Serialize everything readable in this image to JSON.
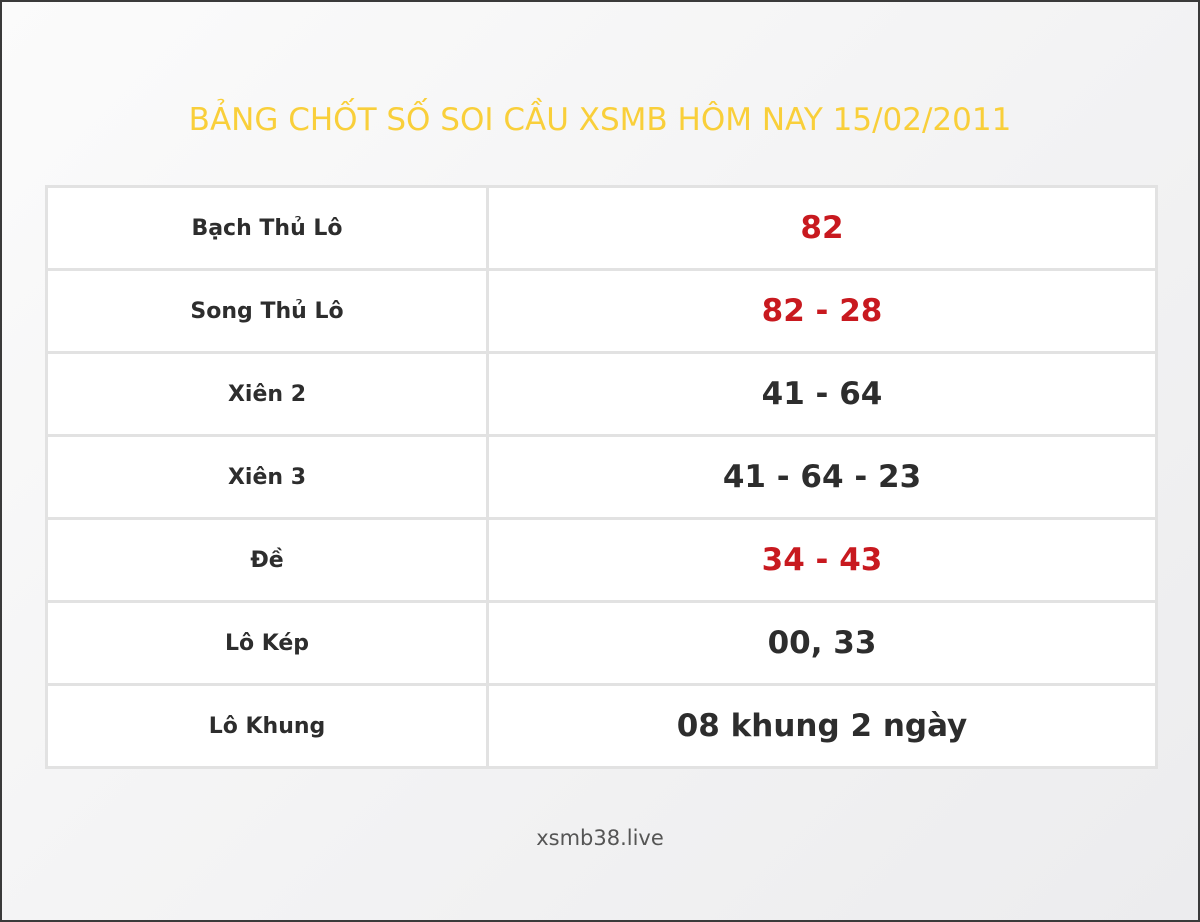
{
  "title": "BẢNG CHỐT SỐ SOI CẦU XSMB HÔM NAY 15/02/2011",
  "rows": [
    {
      "label": "Bạch Thủ Lô",
      "value": "82",
      "highlight": true
    },
    {
      "label": "Song Thủ Lô",
      "value": "82 - 28",
      "highlight": true
    },
    {
      "label": "Xiên 2",
      "value": "41 - 64",
      "highlight": false
    },
    {
      "label": "Xiên 3",
      "value": "41 - 64 - 23",
      "highlight": false
    },
    {
      "label": "Đề",
      "value": "34 - 43",
      "highlight": true
    },
    {
      "label": "Lô Kép",
      "value": "00, 33",
      "highlight": false
    },
    {
      "label": "Lô Khung",
      "value": "08 khung 2 ngày",
      "highlight": false
    }
  ],
  "footer": "xsmb38.live",
  "colors": {
    "title": "#f9cf3a",
    "highlight": "#c8191f",
    "text": "#2d2d2d"
  }
}
